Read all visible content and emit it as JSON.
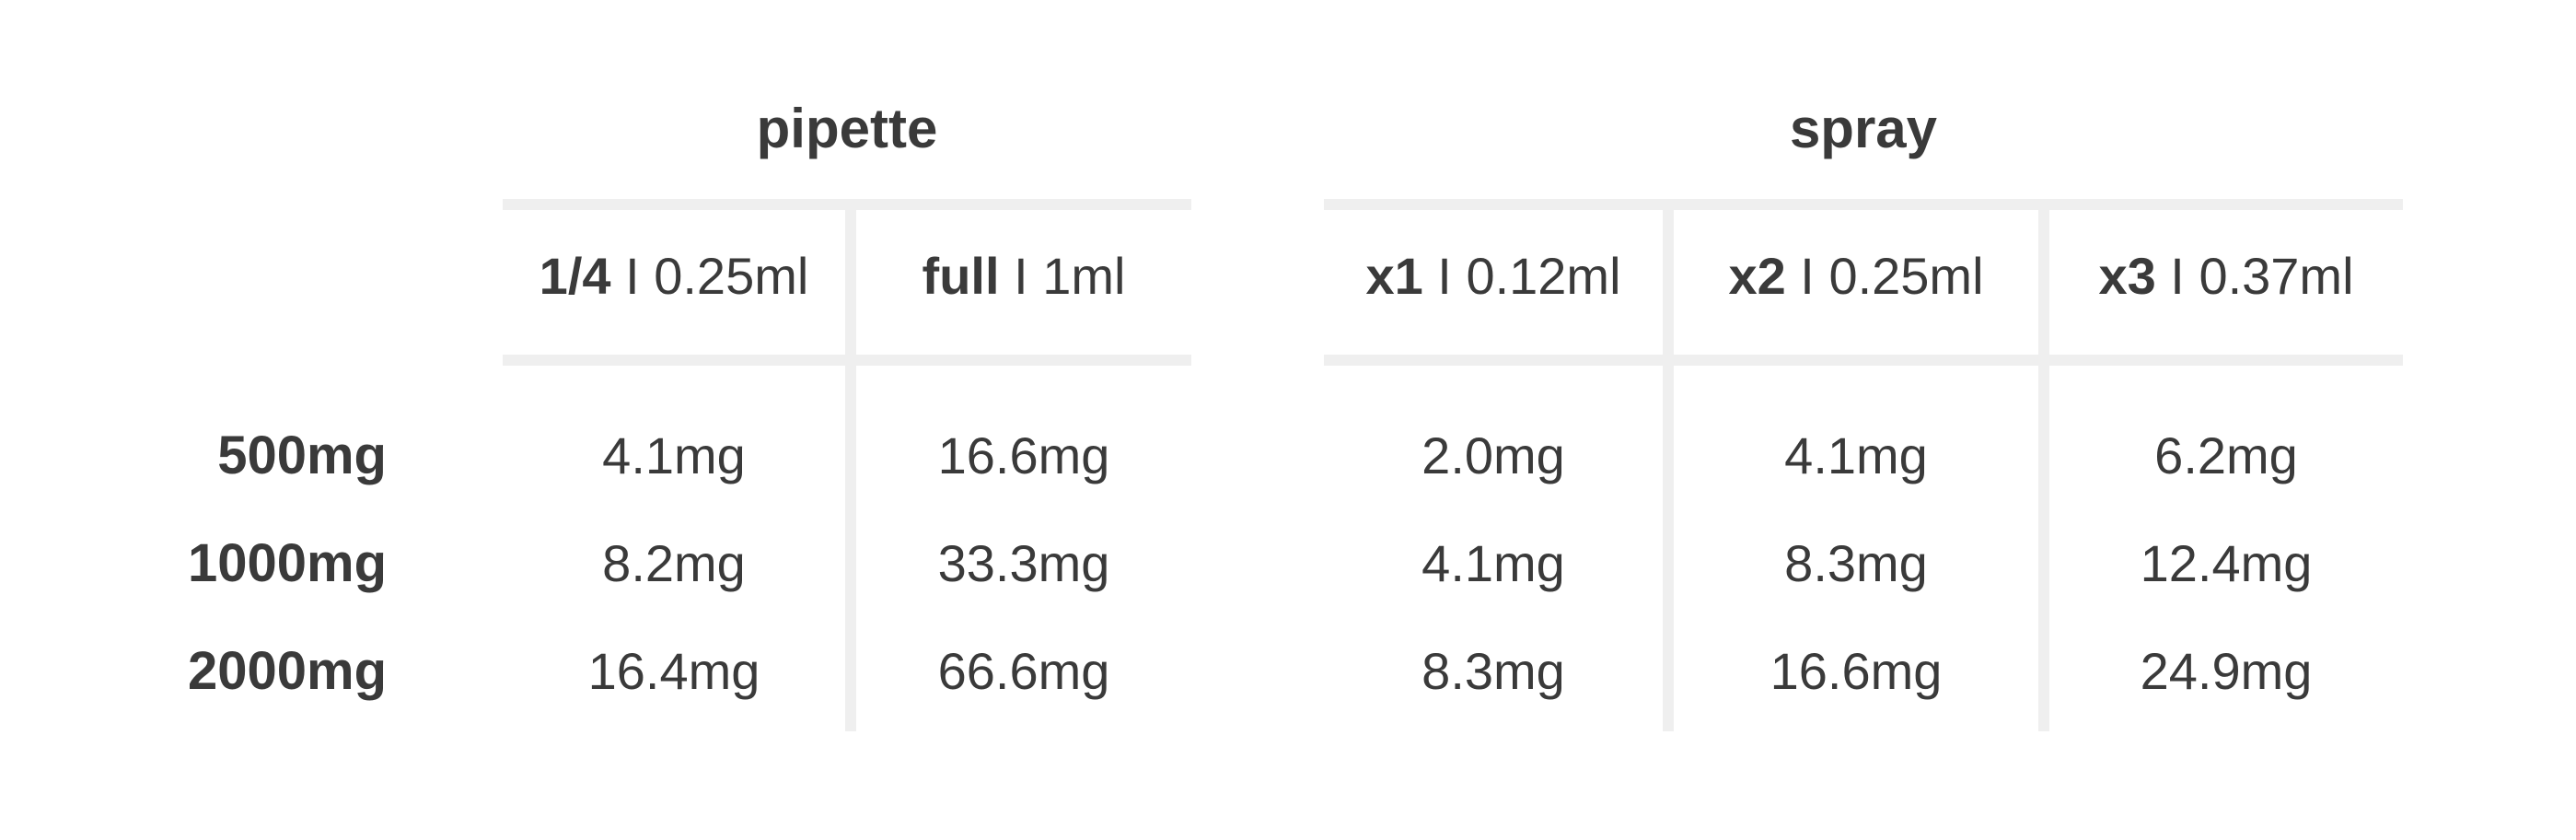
{
  "groups": {
    "pipette": {
      "title": "pipette",
      "columns": [
        {
          "bold": "1/4",
          "sep": " I ",
          "volume": "0.25ml"
        },
        {
          "bold": "full",
          "sep": " I ",
          "volume": "1ml"
        }
      ]
    },
    "spray": {
      "title": "spray",
      "columns": [
        {
          "bold": "x1",
          "sep": " I ",
          "volume": "0.12ml"
        },
        {
          "bold": "x2",
          "sep": " I ",
          "volume": "0.25ml"
        },
        {
          "bold": "x3",
          "sep": " I ",
          "volume": "0.37ml"
        }
      ]
    }
  },
  "rows": [
    {
      "label": "500mg",
      "values": [
        "4.1mg",
        "16.6mg",
        "2.0mg",
        "4.1mg",
        "6.2mg"
      ]
    },
    {
      "label": "1000mg",
      "values": [
        "8.2mg",
        "33.3mg",
        "4.1mg",
        "8.3mg",
        "12.4mg"
      ]
    },
    {
      "label": "2000mg",
      "values": [
        "16.4mg",
        "66.6mg",
        "8.3mg",
        "16.6mg",
        "24.9mg"
      ]
    }
  ],
  "colors": {
    "text": "#3a3a3a",
    "divider": "#efefef"
  }
}
